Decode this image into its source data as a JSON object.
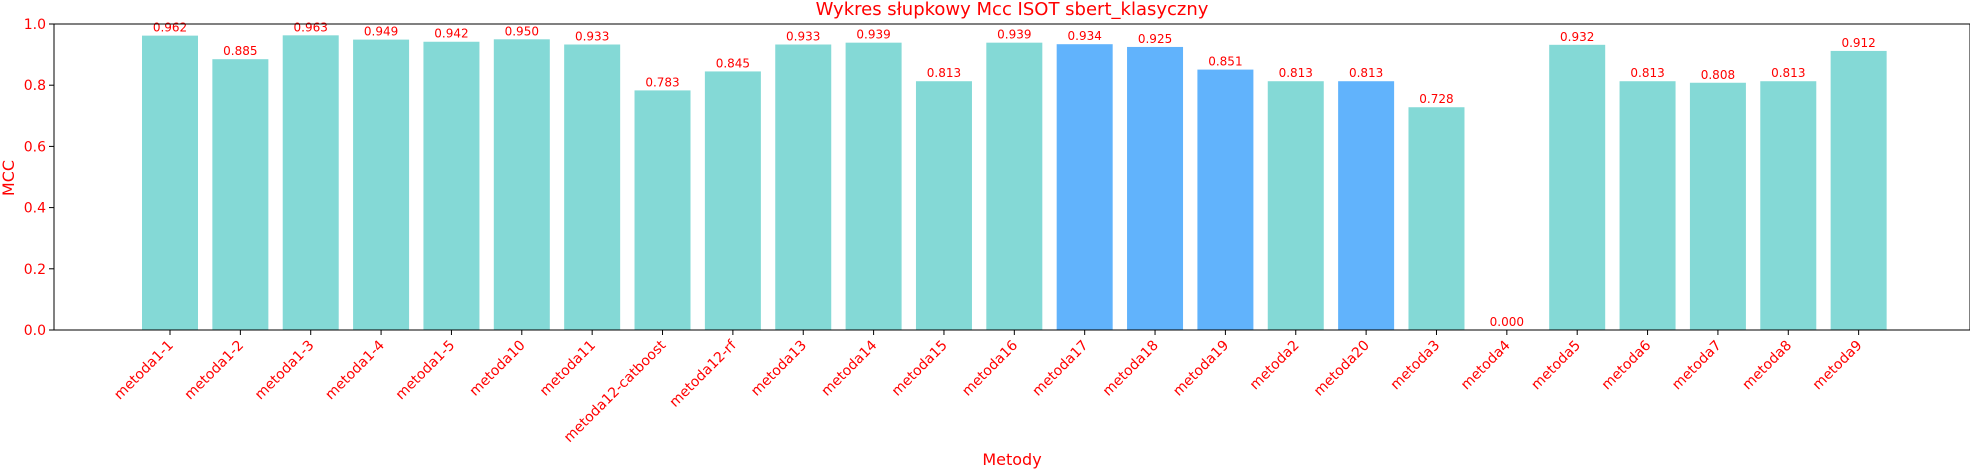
{
  "chart_data": {
    "type": "bar",
    "title": "Wykres słupkowy Mcc ISOT sbert_klasyczny",
    "xlabel": "Metody",
    "ylabel": "MCC",
    "ylim": [
      0,
      1.0
    ],
    "yticks": [
      "0.0",
      "0.2",
      "0.4",
      "0.6",
      "0.8",
      "1.0"
    ],
    "ytick_values": [
      0,
      0.2,
      0.4,
      0.6,
      0.8,
      1.0
    ],
    "grid": false,
    "legend": "none",
    "categories": [
      "metoda1-1",
      "metoda1-2",
      "metoda1-3",
      "metoda1-4",
      "metoda1-5",
      "metoda10",
      "metoda11",
      "metoda12-catboost",
      "metoda12-rf",
      "metoda13",
      "metoda14",
      "metoda15",
      "metoda16",
      "metoda17",
      "metoda18",
      "metoda19",
      "metoda2",
      "metoda20",
      "metoda3",
      "metoda4",
      "metoda5",
      "metoda6",
      "metoda7",
      "metoda8",
      "metoda9"
    ],
    "values": [
      0.962,
      0.885,
      0.963,
      0.949,
      0.942,
      0.95,
      0.933,
      0.783,
      0.845,
      0.933,
      0.939,
      0.813,
      0.939,
      0.934,
      0.925,
      0.851,
      0.813,
      0.813,
      0.728,
      0.0,
      0.932,
      0.813,
      0.808,
      0.813,
      0.912
    ],
    "value_labels": [
      "0.962",
      "0.885",
      "0.963",
      "0.949",
      "0.942",
      "0.950",
      "0.933",
      "0.783",
      "0.845",
      "0.933",
      "0.939",
      "0.813",
      "0.939",
      "0.934",
      "0.925",
      "0.851",
      "0.813",
      "0.813",
      "0.728",
      "0.000",
      "0.932",
      "0.813",
      "0.808",
      "0.813",
      "0.912"
    ],
    "bar_colors": [
      "#84d9d6",
      "#84d9d6",
      "#84d9d6",
      "#84d9d6",
      "#84d9d6",
      "#84d9d6",
      "#84d9d6",
      "#84d9d6",
      "#84d9d6",
      "#84d9d6",
      "#84d9d6",
      "#84d9d6",
      "#84d9d6",
      "#61b3fc",
      "#61b3fc",
      "#61b3fc",
      "#84d9d6",
      "#61b3fc",
      "#84d9d6",
      "#84d9d6",
      "#84d9d6",
      "#84d9d6",
      "#84d9d6",
      "#84d9d6",
      "#84d9d6"
    ],
    "text_color": "#ff0000",
    "axis_color": "#000000"
  }
}
